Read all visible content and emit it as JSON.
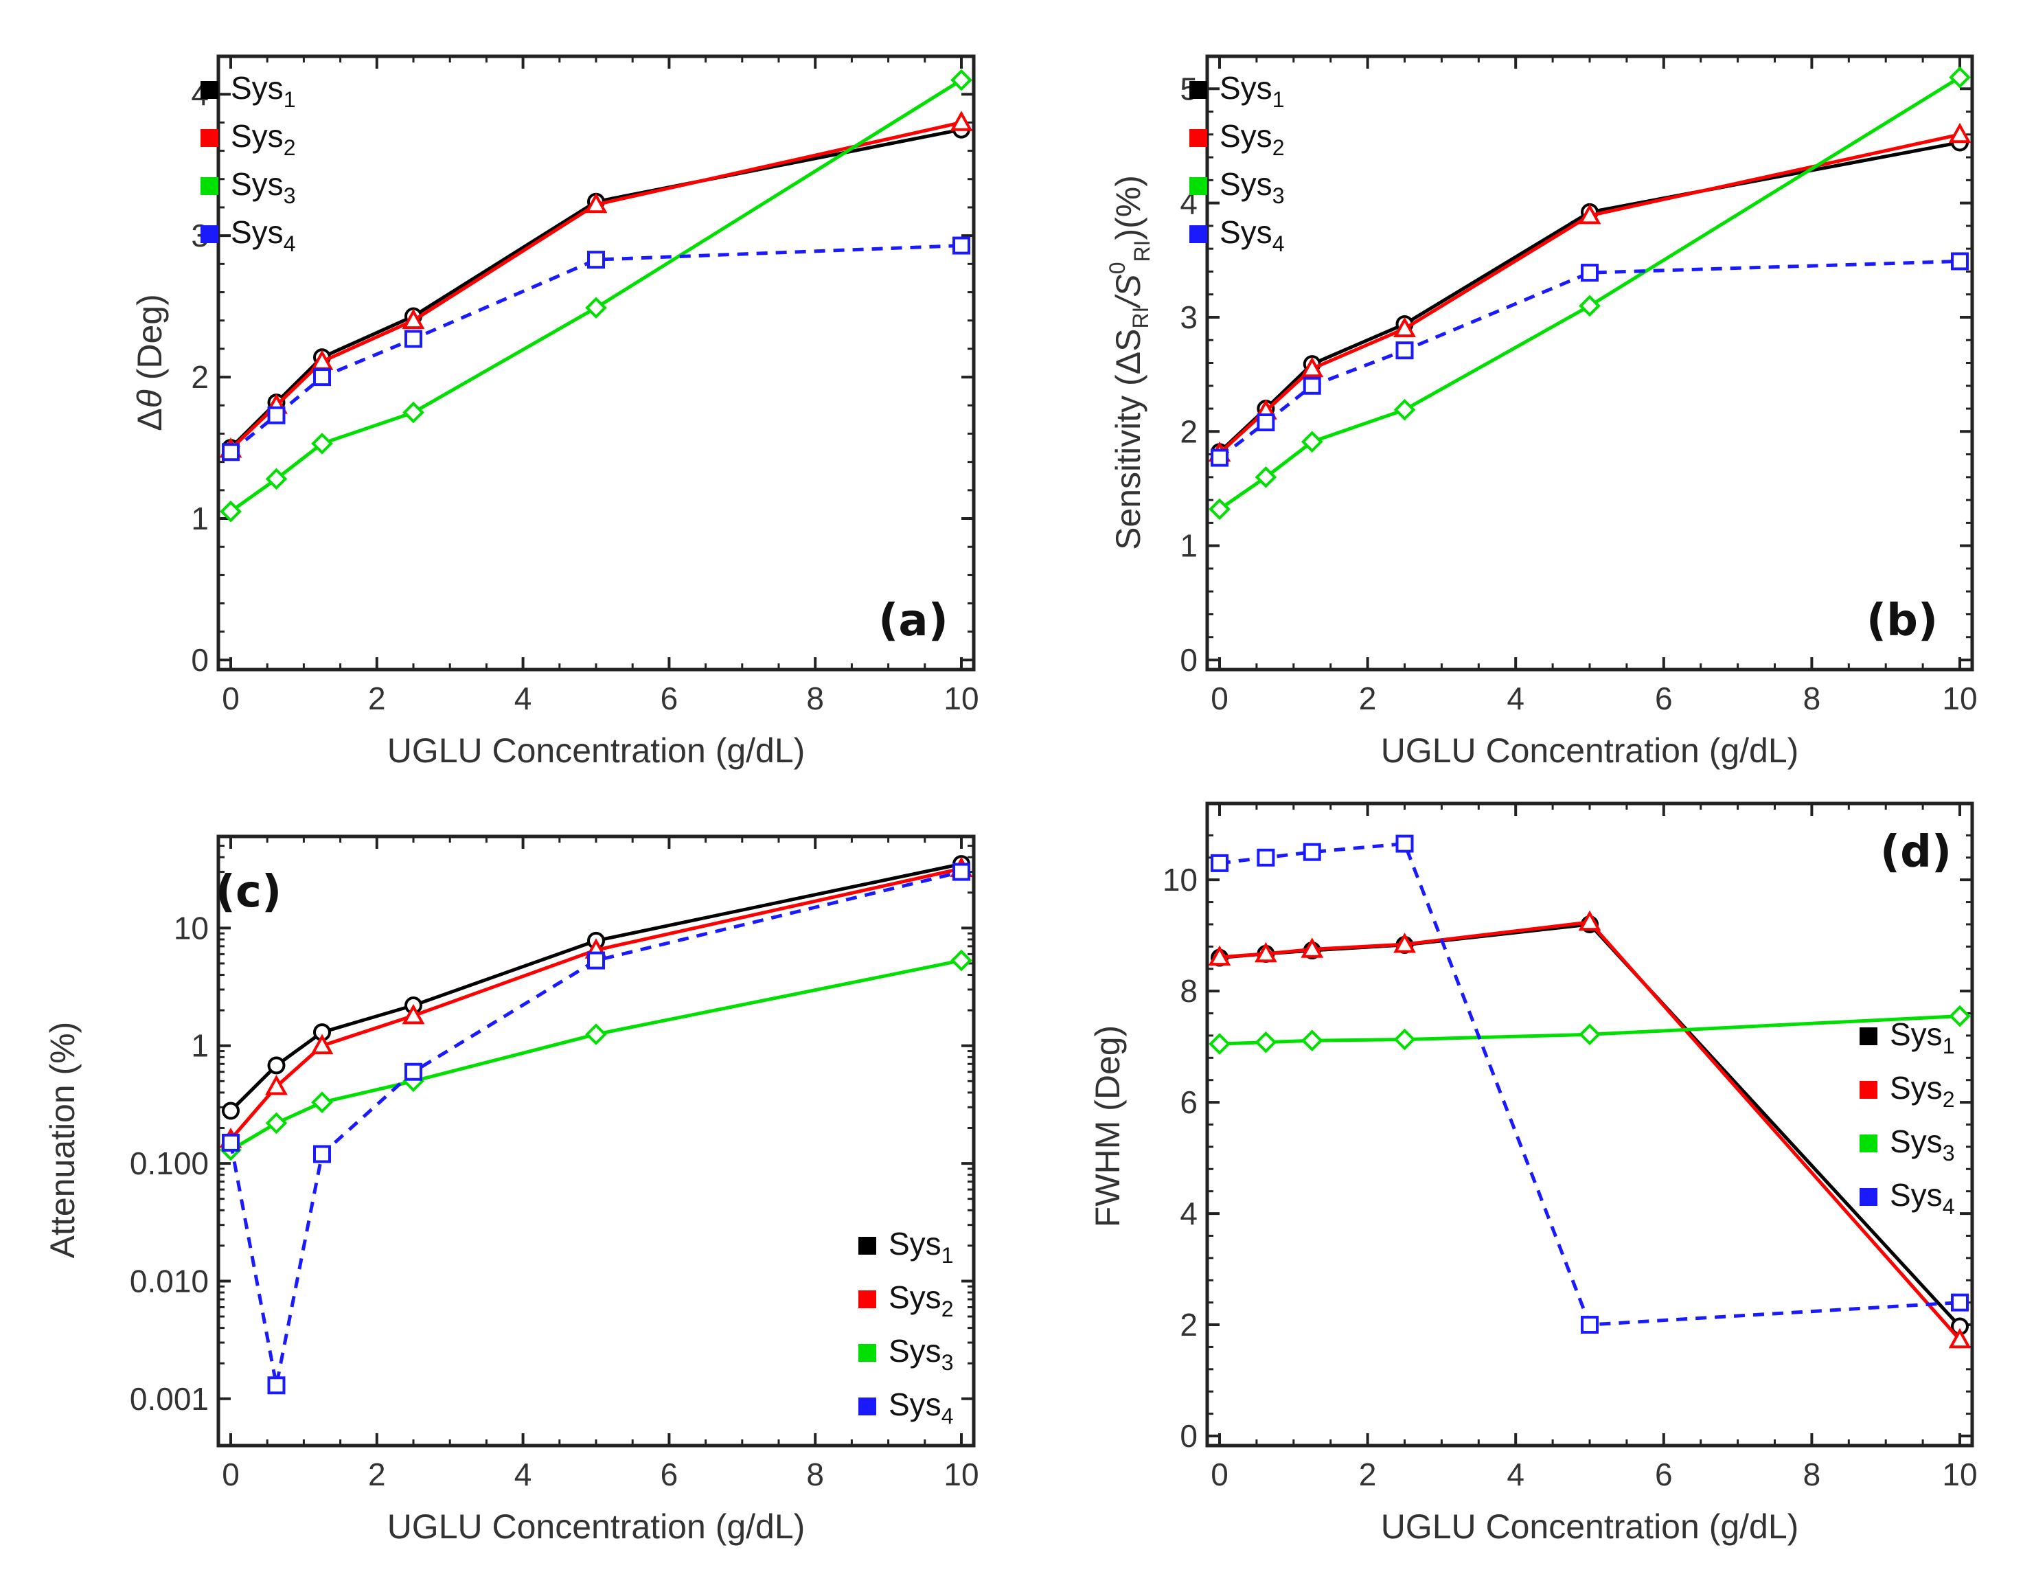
{
  "chart_data": [
    {
      "id": "a",
      "type": "line",
      "panel_label": "(a)",
      "xlabel": "UGLU Concentration (g/dL)",
      "ylabel_prefix": "Δ",
      "ylabel_symbol": "θ",
      "ylabel_suffix": " (Deg)",
      "x": [
        0,
        0.625,
        1.25,
        2.5,
        5,
        10
      ],
      "xlim": [
        0,
        10
      ],
      "xticks": [
        0,
        2,
        4,
        6,
        8,
        10
      ],
      "ylim": [
        0,
        4.2
      ],
      "yticks": [
        0,
        1,
        2,
        3,
        4
      ],
      "log_y": false,
      "legend_position": "top-left",
      "series": [
        {
          "name": "Sys",
          "sub": "1",
          "color": "#000000",
          "marker": "circle",
          "dashed": false,
          "values": [
            1.5,
            1.82,
            2.14,
            2.43,
            3.24,
            3.75
          ]
        },
        {
          "name": "Sys",
          "sub": "2",
          "color": "#ff0000",
          "marker": "triangle",
          "dashed": false,
          "values": [
            1.49,
            1.8,
            2.11,
            2.4,
            3.22,
            3.8
          ]
        },
        {
          "name": "Sys",
          "sub": "3",
          "color": "#00e000",
          "marker": "diamond",
          "dashed": false,
          "values": [
            1.05,
            1.28,
            1.53,
            1.75,
            2.49,
            4.1
          ]
        },
        {
          "name": "Sys",
          "sub": "4",
          "color": "#1a1aff",
          "marker": "square",
          "dashed": true,
          "values": [
            1.47,
            1.73,
            2.0,
            2.27,
            2.83,
            2.93
          ]
        }
      ]
    },
    {
      "id": "b",
      "type": "line",
      "panel_label": "(b)",
      "xlabel": "UGLU Concentration (g/dL)",
      "ylabel_text": "Sensitivity (ΔS",
      "ylabel_sub1": "RI",
      "ylabel_mid": "/S",
      "ylabel_sup": "0",
      "ylabel_sub2": "RI",
      "ylabel_end": ")(%)",
      "x": [
        0,
        0.625,
        1.25,
        2.5,
        5,
        10
      ],
      "xlim": [
        0,
        10
      ],
      "xticks": [
        0,
        2,
        4,
        6,
        8,
        10
      ],
      "ylim": [
        0,
        5.2
      ],
      "yticks": [
        0,
        1,
        2,
        3,
        4,
        5
      ],
      "log_y": false,
      "legend_position": "top-left",
      "series": [
        {
          "name": "Sys",
          "sub": "1",
          "color": "#000000",
          "marker": "circle",
          "dashed": false,
          "values": [
            1.82,
            2.2,
            2.59,
            2.94,
            3.92,
            4.53
          ]
        },
        {
          "name": "Sys",
          "sub": "2",
          "color": "#ff0000",
          "marker": "triangle",
          "dashed": false,
          "values": [
            1.81,
            2.18,
            2.55,
            2.9,
            3.89,
            4.6
          ]
        },
        {
          "name": "Sys",
          "sub": "3",
          "color": "#00e000",
          "marker": "diamond",
          "dashed": false,
          "values": [
            1.32,
            1.6,
            1.91,
            2.19,
            3.1,
            5.1
          ]
        },
        {
          "name": "Sys",
          "sub": "4",
          "color": "#1a1aff",
          "marker": "square",
          "dashed": true,
          "values": [
            1.77,
            2.08,
            2.4,
            2.71,
            3.39,
            3.49
          ]
        }
      ]
    },
    {
      "id": "c",
      "type": "line",
      "panel_label": "(c)",
      "xlabel": "UGLU Concentration (g/dL)",
      "ylabel_text": "Attenuation (%)",
      "x": [
        0,
        0.625,
        1.25,
        2.5,
        5,
        10
      ],
      "xlim": [
        0,
        10
      ],
      "xticks": [
        0,
        2,
        4,
        6,
        8,
        10
      ],
      "ylim": [
        0.0004,
        60
      ],
      "yticks": [
        0.001,
        0.01,
        0.1,
        1,
        10
      ],
      "ytick_labels": [
        "0.001",
        "0.010",
        "0.100",
        "1",
        "10"
      ],
      "log_y": true,
      "legend_position": "bottom-right",
      "series": [
        {
          "name": "Sys",
          "sub": "1",
          "color": "#000000",
          "marker": "circle",
          "dashed": false,
          "values": [
            0.28,
            0.68,
            1.3,
            2.2,
            7.8,
            35
          ]
        },
        {
          "name": "Sys",
          "sub": "2",
          "color": "#ff0000",
          "marker": "triangle",
          "dashed": false,
          "values": [
            0.16,
            0.45,
            1.0,
            1.8,
            6.5,
            32
          ]
        },
        {
          "name": "Sys",
          "sub": "3",
          "color": "#00e000",
          "marker": "diamond",
          "dashed": false,
          "values": [
            0.13,
            0.22,
            0.33,
            0.5,
            1.25,
            5.3
          ]
        },
        {
          "name": "Sys",
          "sub": "4",
          "color": "#1a1aff",
          "marker": "square",
          "dashed": true,
          "values": [
            0.15,
            0.0013,
            0.12,
            0.6,
            5.3,
            30
          ]
        }
      ]
    },
    {
      "id": "d",
      "type": "line",
      "panel_label": "(d)",
      "xlabel": "UGLU Concentration (g/dL)",
      "ylabel_text": "FWHM (Deg)",
      "x": [
        0,
        0.625,
        1.25,
        2.5,
        5,
        10
      ],
      "xlim": [
        0,
        10
      ],
      "xticks": [
        0,
        2,
        4,
        6,
        8,
        10
      ],
      "ylim": [
        0,
        11.2
      ],
      "yticks": [
        0,
        2,
        4,
        6,
        8,
        10
      ],
      "log_y": false,
      "legend_position": "right",
      "series": [
        {
          "name": "Sys",
          "sub": "1",
          "color": "#000000",
          "marker": "circle",
          "dashed": false,
          "values": [
            8.6,
            8.67,
            8.73,
            8.83,
            9.2,
            1.97
          ]
        },
        {
          "name": "Sys",
          "sub": "2",
          "color": "#ff0000",
          "marker": "triangle",
          "dashed": false,
          "values": [
            8.61,
            8.67,
            8.75,
            8.84,
            9.24,
            1.73
          ]
        },
        {
          "name": "Sys",
          "sub": "3",
          "color": "#00e000",
          "marker": "diamond",
          "dashed": false,
          "values": [
            7.05,
            7.08,
            7.11,
            7.13,
            7.22,
            7.55
          ]
        },
        {
          "name": "Sys",
          "sub": "4",
          "color": "#1a1aff",
          "marker": "square",
          "dashed": true,
          "values": [
            10.3,
            10.4,
            10.5,
            10.65,
            2.0,
            2.4
          ]
        }
      ]
    }
  ]
}
